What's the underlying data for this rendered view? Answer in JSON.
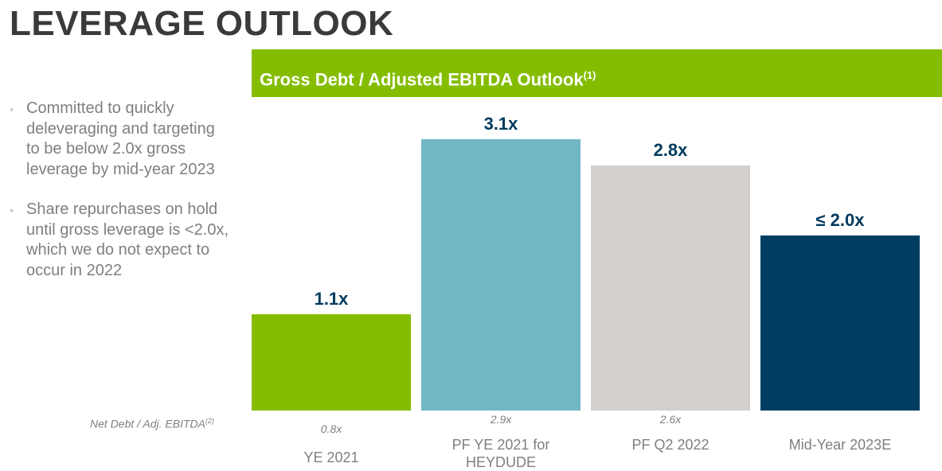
{
  "page": {
    "title": "LEVERAGE OUTLOOK",
    "bullets": [
      "Committed to quickly deleveraging and targeting to be below 2.0x gross leverage by mid-year 2023",
      "Share repurchases on hold until gross leverage is <2.0x, which we do not expect to occur in 2022"
    ],
    "bullet_marker": "◦"
  },
  "chart_data": {
    "type": "bar",
    "title": "Gross Debt / Adjusted EBITDA Outlook",
    "title_footnote": "(1)",
    "categories": [
      "YE 2021",
      "PF YE 2021 for HEYDUDE",
      "PF Q2 2022",
      "Mid-Year 2023E"
    ],
    "values": [
      1.1,
      3.1,
      2.8,
      2.0
    ],
    "value_labels": [
      "1.1x",
      "3.1x",
      "2.8x",
      "≤ 2.0x"
    ],
    "colors": [
      "#84bd00",
      "#71b7c4",
      "#d3cfcb",
      "#003f63"
    ],
    "secondary_series": {
      "name": "Net Debt / Adj. EBITDA",
      "footnote": "(2)",
      "value_labels": [
        "0.8x",
        "2.9x",
        "2.6x",
        ""
      ]
    },
    "ylim": [
      0,
      3.1
    ],
    "header_color": "#84bd00",
    "value_label_color": "#003a5d"
  }
}
